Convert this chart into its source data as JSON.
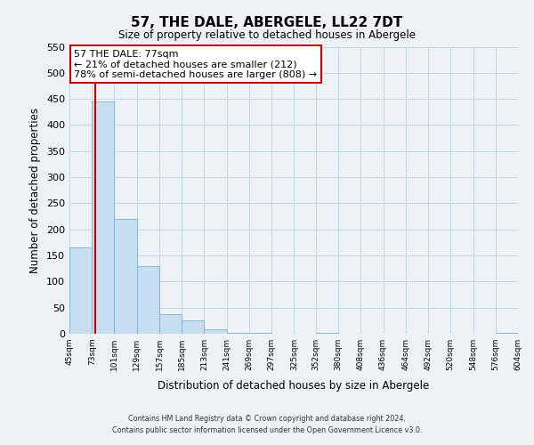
{
  "title": "57, THE DALE, ABERGELE, LL22 7DT",
  "subtitle": "Size of property relative to detached houses in Abergele",
  "xlabel": "Distribution of detached houses by size in Abergele",
  "ylabel": "Number of detached properties",
  "bar_edges": [
    45,
    73,
    101,
    129,
    157,
    185,
    213,
    241,
    269,
    297,
    325,
    352,
    380,
    408,
    436,
    464,
    492,
    520,
    548,
    576,
    604
  ],
  "bar_heights": [
    165,
    445,
    220,
    130,
    37,
    25,
    9,
    2,
    1,
    0,
    0,
    1,
    0,
    0,
    0,
    0,
    0,
    0,
    0,
    2
  ],
  "bar_color": "#c5dff0",
  "bar_edge_color": "#7ab0d0",
  "property_line_x": 77,
  "property_line_color": "#cc0000",
  "annotation_line1": "57 THE DALE: 77sqm",
  "annotation_line2": "← 21% of detached houses are smaller (212)",
  "annotation_line3": "78% of semi-detached houses are larger (808) →",
  "annotation_box_color": "#cc0000",
  "annotation_box_bg": "#ffffff",
  "ylim": [
    0,
    550
  ],
  "yticks": [
    0,
    50,
    100,
    150,
    200,
    250,
    300,
    350,
    400,
    450,
    500,
    550
  ],
  "tick_labels": [
    "45sqm",
    "73sqm",
    "101sqm",
    "129sqm",
    "157sqm",
    "185sqm",
    "213sqm",
    "241sqm",
    "269sqm",
    "297sqm",
    "325sqm",
    "352sqm",
    "380sqm",
    "408sqm",
    "436sqm",
    "464sqm",
    "492sqm",
    "520sqm",
    "548sqm",
    "576sqm",
    "604sqm"
  ],
  "footer_line1": "Contains HM Land Registry data © Crown copyright and database right 2024.",
  "footer_line2": "Contains public sector information licensed under the Open Government Licence v3.0.",
  "grid_color": "#c5d5e5",
  "bg_color": "#eef2f7"
}
